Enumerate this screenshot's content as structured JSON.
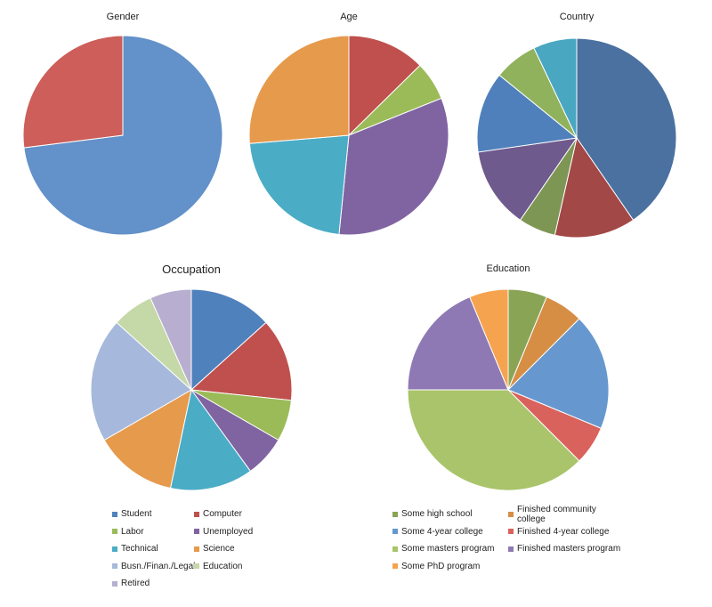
{
  "chart_data": [
    {
      "type": "pie",
      "title": "Gender",
      "categories": [
        "",
        ""
      ],
      "values": [
        0.73,
        0.27
      ],
      "colors": [
        "#6391c9",
        "#cd5e59"
      ]
    },
    {
      "type": "pie",
      "title": "Age",
      "categories": [
        "",
        "",
        "",
        "",
        ""
      ],
      "values": [
        0.12,
        0.06,
        0.31,
        0.21,
        0.25
      ],
      "colors": [
        "#c0504d",
        "#9bbb59",
        "#8064a2",
        "#4bacc6",
        "#e69a4c"
      ]
    },
    {
      "type": "pie",
      "title": "Country",
      "categories": [
        "",
        "",
        "",
        "",
        "",
        "",
        ""
      ],
      "values": [
        0.4,
        0.13,
        0.06,
        0.13,
        0.13,
        0.07,
        0.07
      ],
      "colors": [
        "#4a71a0",
        "#a24846",
        "#7e9654",
        "#6e5a8c",
        "#4f80bc",
        "#91b25c",
        "#4aa7c2"
      ]
    },
    {
      "type": "pie",
      "title": "Occupation",
      "categories": [
        "Student",
        "Computer",
        "Labor",
        "Unemployed",
        "Technical",
        "Science",
        "Busn./Finan./Legal",
        "Education",
        "Retired"
      ],
      "values": [
        0.125,
        0.125,
        0.0625,
        0.0625,
        0.125,
        0.125,
        0.1875,
        0.0625,
        0.0625
      ],
      "colors": [
        "#4f81bd",
        "#c0504d",
        "#9bbb59",
        "#8064a2",
        "#4bacc6",
        "#e69a4c",
        "#a6b9dc",
        "#c5d8a8",
        "#b8aecf"
      ]
    },
    {
      "type": "pie",
      "title": "Education",
      "categories": [
        "Some high school",
        "Finished community college",
        "Some 4-year college",
        "Finished 4-year college",
        "Some masters program",
        "Finished masters program",
        "Some PhD program"
      ],
      "values": [
        0.0625,
        0.0625,
        0.1875,
        0.0625,
        0.375,
        0.1875,
        0.0625
      ],
      "colors": [
        "#8aa456",
        "#d68e45",
        "#6698cf",
        "#d9625c",
        "#a9c46a",
        "#8e79b4",
        "#f5a34e"
      ]
    }
  ]
}
